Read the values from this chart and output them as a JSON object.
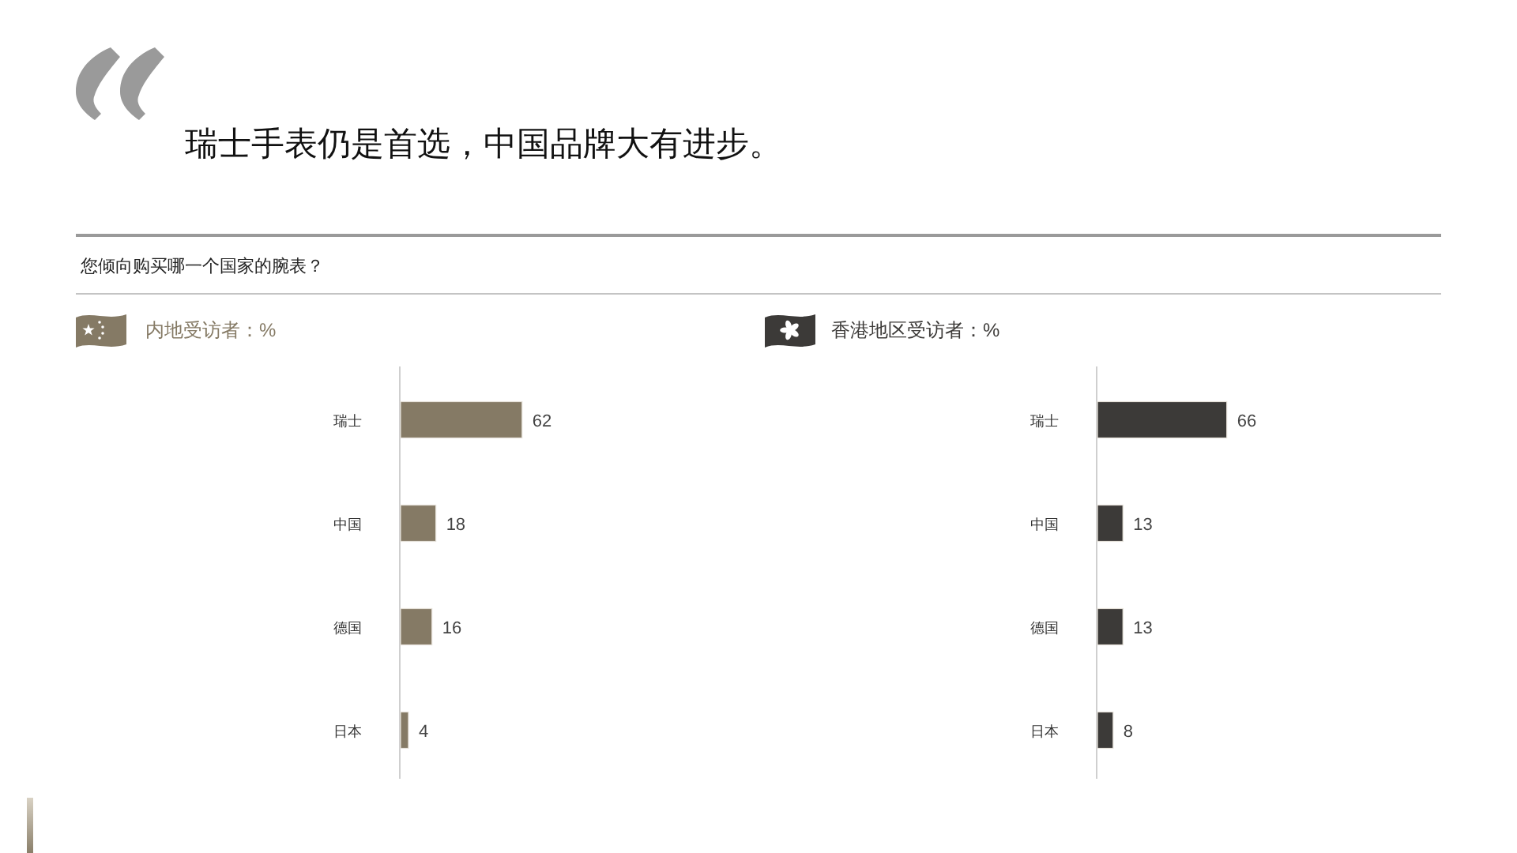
{
  "chart_data": [
    {
      "type": "bar",
      "orientation": "horizontal",
      "title": "内地受访者：%",
      "categories": [
        "瑞士",
        "中国",
        "德国",
        "日本"
      ],
      "values": [
        62,
        18,
        16,
        4
      ],
      "color": "#857a65",
      "data_labels": true,
      "tick_labels": "y",
      "annotations": [
        "瑞士手表仍是首选，中国品牌大有进步。",
        "您倾向购买哪一个国家的腕表？"
      ]
    },
    {
      "type": "bar",
      "orientation": "horizontal",
      "title": "香港地区受访者：%",
      "categories": [
        "瑞士",
        "中国",
        "德国",
        "日本"
      ],
      "values": [
        66,
        13,
        13,
        8
      ],
      "color": "#3c3a38",
      "data_labels": true,
      "tick_labels": "y"
    }
  ]
}
